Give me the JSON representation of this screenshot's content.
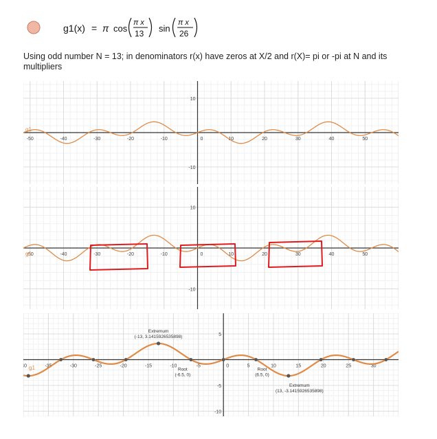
{
  "formula": {
    "lhs": "g1(x)",
    "eq": "=",
    "pi": "π",
    "cos": "cos",
    "sin": "sin",
    "num1": "π x",
    "den1": "13",
    "num2": "π x",
    "den2": "26",
    "dot_color": "#f0b7a4"
  },
  "description": "Using odd number N = 13; in denominators r(x) have zeros at X/2 and r(X)= pi or -pi at N and its multipliers",
  "colors": {
    "curve": "#e08a45",
    "axis": "#333333",
    "grid_major": "#dcdcdc",
    "grid_minor": "#f1f1f1",
    "marker": "#e0191c",
    "point": "#555555"
  },
  "panels": [
    {
      "xlim": [
        -52,
        60
      ],
      "ylim": [
        -15,
        15
      ],
      "xticks": [
        -50,
        -40,
        -30,
        -20,
        -10,
        0,
        10,
        20,
        30,
        40,
        50
      ],
      "yticks": [
        10,
        -10
      ],
      "label": "g1"
    },
    {
      "xlim": [
        -52,
        60
      ],
      "ylim": [
        -15,
        15
      ],
      "xticks": [
        -50,
        -40,
        -30,
        -20,
        -10,
        0,
        10,
        20,
        30,
        40,
        50
      ],
      "yticks": [
        10,
        -10
      ],
      "label": "g1"
    },
    {
      "xlim": [
        -40,
        35
      ],
      "ylim": [
        -11,
        9
      ],
      "xticks": [
        -40,
        -35,
        -30,
        -25,
        -20,
        -15,
        -10,
        -5,
        0,
        5,
        10,
        15,
        20,
        25,
        30
      ],
      "yticks": [
        5,
        -5,
        -10
      ],
      "label": "g1"
    }
  ],
  "annotations": [
    {
      "title": "Extremum",
      "value": "(-13, 3.1415926535898)"
    },
    {
      "title": "Root",
      "value": "(-6.5, 0)"
    },
    {
      "title": "Root",
      "value": "(6.5, 0)"
    },
    {
      "title": "Extremum",
      "value": "(13, -3.1415926535898)"
    }
  ]
}
